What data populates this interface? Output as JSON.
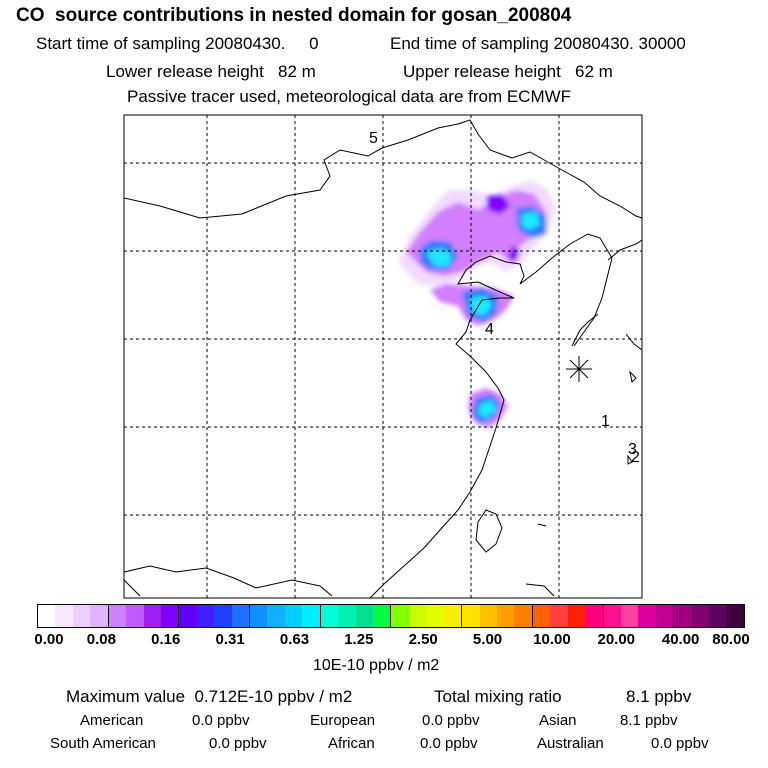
{
  "header": {
    "title": "CO  source contributions in nested domain for gosan_200804",
    "start_label": "Start time of sampling 20080430.     0",
    "end_label": "End time of sampling 20080430. 30000",
    "lower_height": "Lower release height   82 m",
    "upper_height": "Upper release height   62 m",
    "note": "Passive tracer used, meteorological data are from ECMWF"
  },
  "map": {
    "point_labels": [
      "5",
      "4",
      "1",
      "3",
      "2"
    ],
    "receptor_marker": "asterisk"
  },
  "colorbar": {
    "unit": "10E-10 ppbv / m2",
    "ticks": [
      "0.00",
      "0.08",
      "0.16",
      "0.31",
      "0.63",
      "1.25",
      "2.50",
      "5.00",
      "10.00",
      "20.00",
      "40.00",
      "80.00"
    ],
    "colors": [
      "#ffffff",
      "#f6e6ff",
      "#eccfff",
      "#e0b3ff",
      "#d080ff",
      "#c05cff",
      "#a020f0",
      "#8000ff",
      "#6000ff",
      "#4020ff",
      "#2040ff",
      "#2070ff",
      "#1090ff",
      "#10b0ff",
      "#00d0ff",
      "#00f0ff",
      "#00ffd8",
      "#00f0b0",
      "#00e090",
      "#00ff40",
      "#80ff00",
      "#c8ff00",
      "#e0ff00",
      "#f8f000",
      "#ffe000",
      "#ffc000",
      "#ffa000",
      "#ff8000",
      "#ff6000",
      "#ff4040",
      "#ff2000",
      "#ff0080",
      "#ff1090",
      "#ff40a0",
      "#e000a0",
      "#c00090",
      "#a00080",
      "#800070",
      "#600060",
      "#400040"
    ]
  },
  "summary": {
    "max_label": "Maximum value  0.712E-10 ppbv / m2",
    "total_label": "Total mixing ratio",
    "total_value": "8.1 ppbv",
    "regions": [
      {
        "name": "American",
        "value": "0.0 ppbv"
      },
      {
        "name": "European",
        "value": "0.0 ppbv"
      },
      {
        "name": "Asian",
        "value": "8.1 ppbv"
      },
      {
        "name": "South American",
        "value": "0.0 ppbv"
      },
      {
        "name": "African",
        "value": "0.0 ppbv"
      },
      {
        "name": "Australian",
        "value": "0.0 ppbv"
      }
    ]
  }
}
